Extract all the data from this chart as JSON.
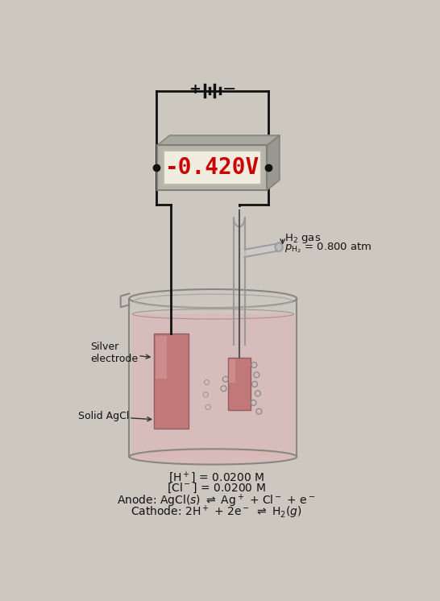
{
  "bg_color": "#ccc8c0",
  "voltmeter_value": "-0.420V",
  "voltmeter_color": "#cc0000",
  "voltmeter_bg": "#f0ede0",
  "wire_color": "#111111",
  "electrode_color_ag": "#c87878",
  "electrode_color_pt": "#c07070",
  "beaker_liquid": "#dbb8b8",
  "plus_symbol": "+",
  "minus_symbol": "−",
  "silver_label": "Silver\nelectrode",
  "agcl_label": "Solid AgCl"
}
